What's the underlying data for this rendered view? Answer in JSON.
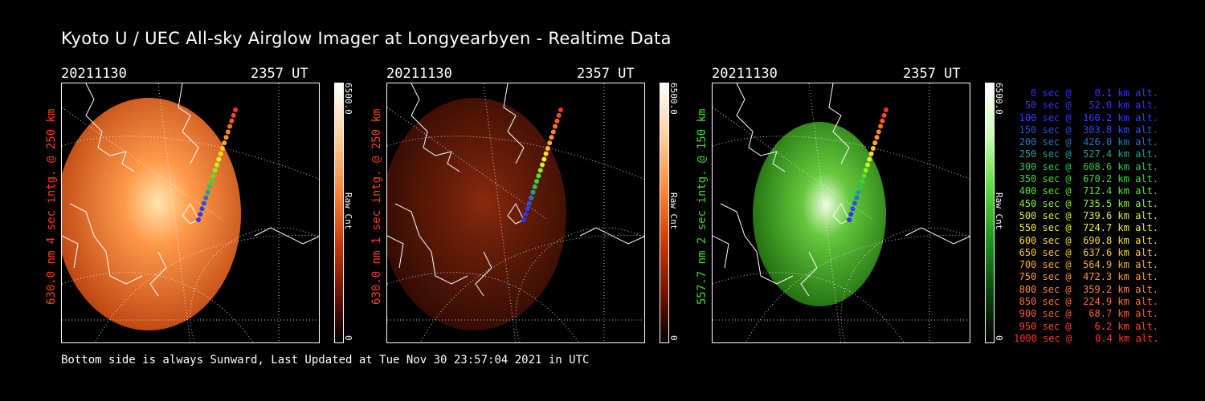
{
  "title": "Kyoto U / UEC All-sky Airglow Imager at Longyearbyen - Realtime Data",
  "footer": "Bottom side is always Sunward, Last Updated at Tue Nov 30 23:57:04 2021 in UTC",
  "panels": [
    {
      "date": "20211130",
      "time": "2357 UT",
      "vlabel": "630.0 nm 4 sec intg. @ 250 km",
      "label_color": "#ff3c14",
      "cbar_max": "6500.0",
      "cbar_min": "0",
      "cbar_unit": "Raw Cnt",
      "glow": "#c04a12"
    },
    {
      "date": "20211130",
      "time": "2357 UT",
      "vlabel": "630.0 nm 1 sec intg. @ 250 km",
      "label_color": "#ff3c14",
      "cbar_max": "6500.0",
      "cbar_min": "0",
      "cbar_unit": "Raw Cnt",
      "glow": "#3a0d04"
    },
    {
      "date": "20211130",
      "time": "2357 UT",
      "vlabel": "557.7 nm 2 sec intg. @ 150 km",
      "label_color": "#3cdc28",
      "cbar_max": "6500.0",
      "cbar_min": "0",
      "cbar_unit": "Raw Cnt",
      "glow": "#1c6a0c"
    }
  ],
  "legend": [
    {
      "text": "0 sec @    0.1 km alt.",
      "color": "#3232ff"
    },
    {
      "text": "50 sec @   52.0 km alt.",
      "color": "#3232ff"
    },
    {
      "text": "100 sec @  160.2 km alt.",
      "color": "#2840ff"
    },
    {
      "text": "150 sec @  303.8 km alt.",
      "color": "#2850e6"
    },
    {
      "text": "200 sec @  426.0 km alt.",
      "color": "#1e78c8"
    },
    {
      "text": "250 sec @  527.4 km alt.",
      "color": "#1ea096"
    },
    {
      "text": "300 sec @  608.6 km alt.",
      "color": "#28c850"
    },
    {
      "text": "350 sec @  670.2 km alt.",
      "color": "#32dc32"
    },
    {
      "text": "400 sec @  712.4 km alt.",
      "color": "#50e628"
    },
    {
      "text": "450 sec @  735.5 km alt.",
      "color": "#8cf028"
    },
    {
      "text": "500 sec @  739.6 km alt.",
      "color": "#c8f028"
    },
    {
      "text": "550 sec @  724.7 km alt.",
      "color": "#f0f028"
    },
    {
      "text": "600 sec @  690.8 km alt.",
      "color": "#ffdc28"
    },
    {
      "text": "650 sec @  637.6 km alt.",
      "color": "#ffc828"
    },
    {
      "text": "700 sec @  564.9 km alt.",
      "color": "#ffaa28"
    },
    {
      "text": "750 sec @  472.3 km alt.",
      "color": "#ff9628"
    },
    {
      "text": "800 sec @  359.2 km alt.",
      "color": "#ff8228"
    },
    {
      "text": "850 sec @  224.9 km alt.",
      "color": "#ff6e28"
    },
    {
      "text": "900 sec @   68.7 km alt.",
      "color": "#ff5a28"
    },
    {
      "text": "950 sec @    6.2 km alt.",
      "color": "#ff4628"
    },
    {
      "text": "1000 sec @    0.4 km alt.",
      "color": "#ff3228"
    }
  ]
}
